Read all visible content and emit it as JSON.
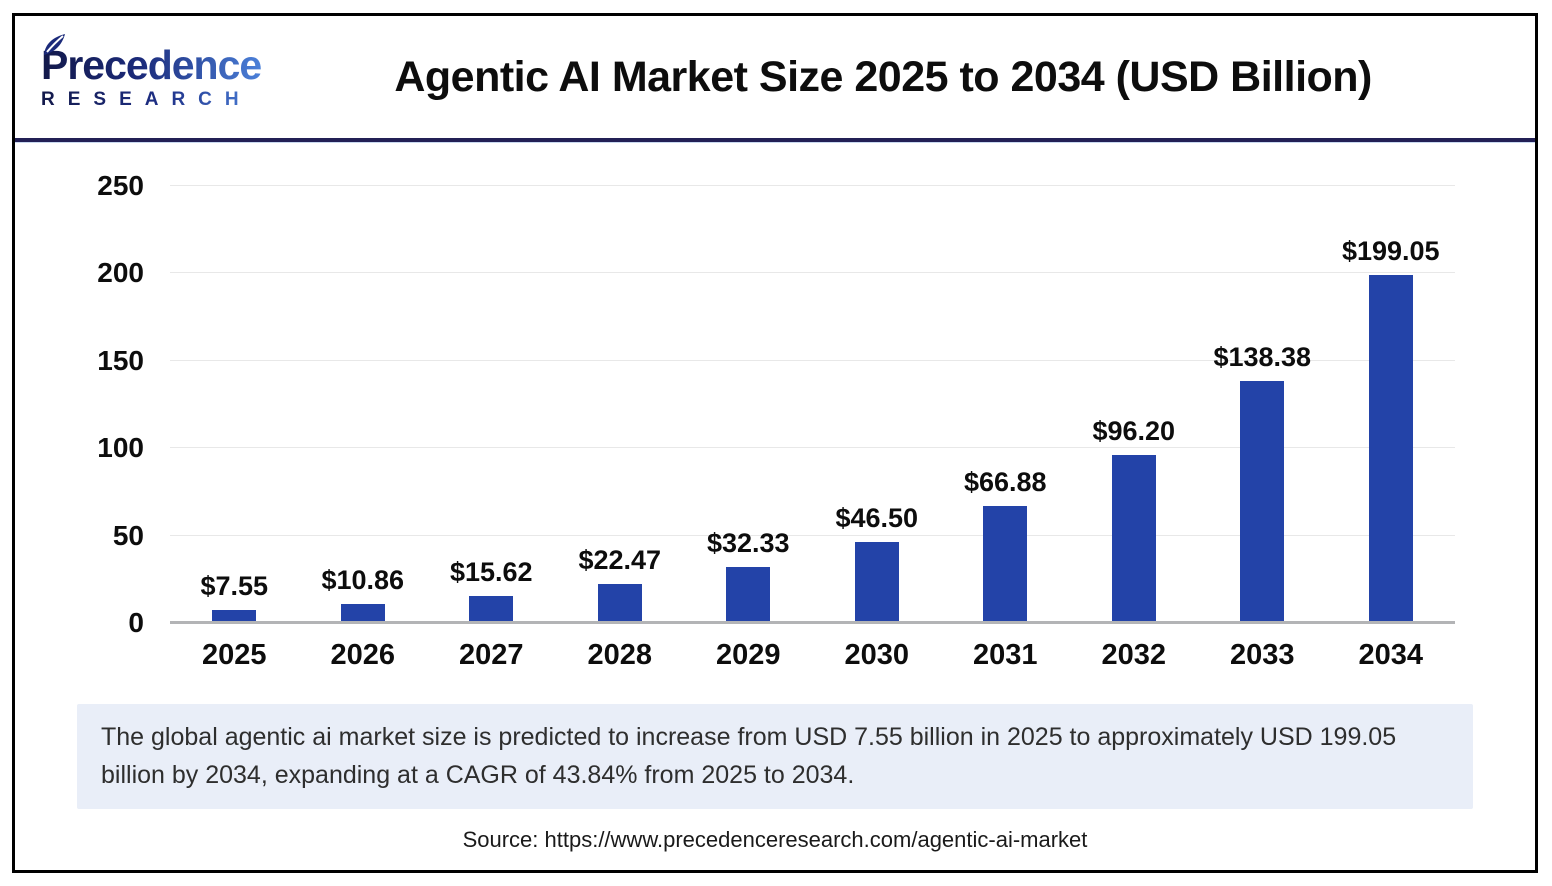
{
  "header": {
    "logo_line1": "Precedence",
    "logo_line2": "RESEARCH",
    "title": "Agentic AI Market Size 2025 to 2034 (USD Billion)"
  },
  "chart_data": {
    "type": "bar",
    "title": "Agentic AI Market Size 2025 to 2034 (USD Billion)",
    "categories": [
      "2025",
      "2026",
      "2027",
      "2028",
      "2029",
      "2030",
      "2031",
      "2032",
      "2033",
      "2034"
    ],
    "values": [
      7.55,
      10.86,
      15.62,
      22.47,
      32.33,
      46.5,
      66.88,
      96.2,
      138.38,
      199.05
    ],
    "value_labels": [
      "$7.55",
      "$10.86",
      "$15.62",
      "$22.47",
      "$32.33",
      "$46.50",
      "$66.88",
      "$96.20",
      "$138.38",
      "$199.05"
    ],
    "xlabel": "",
    "ylabel": "",
    "ylim": [
      0,
      250
    ],
    "yticks": [
      0,
      50,
      100,
      150,
      200,
      250
    ],
    "grid": true,
    "legend": "none",
    "bar_color": "#2343a8"
  },
  "footer": {
    "summary": "The global agentic ai market size is predicted to increase from USD 7.55 billion in 2025 to approximately USD 199.05 billion by 2034, expanding at a CAGR of 43.84% from 2025 to 2034.",
    "source": "Source: https://www.precedenceresearch.com/agentic-ai-market"
  },
  "colors": {
    "bar": "#2343a8",
    "header_divider": "#232055",
    "summary_background": "#e9eef8",
    "gridline": "#e8e8e8",
    "axis_baseline": "#b3b4b6",
    "logo_navy": "#13194a",
    "logo_blue": "#4b80d9",
    "title_text": "#0d0d0d"
  }
}
